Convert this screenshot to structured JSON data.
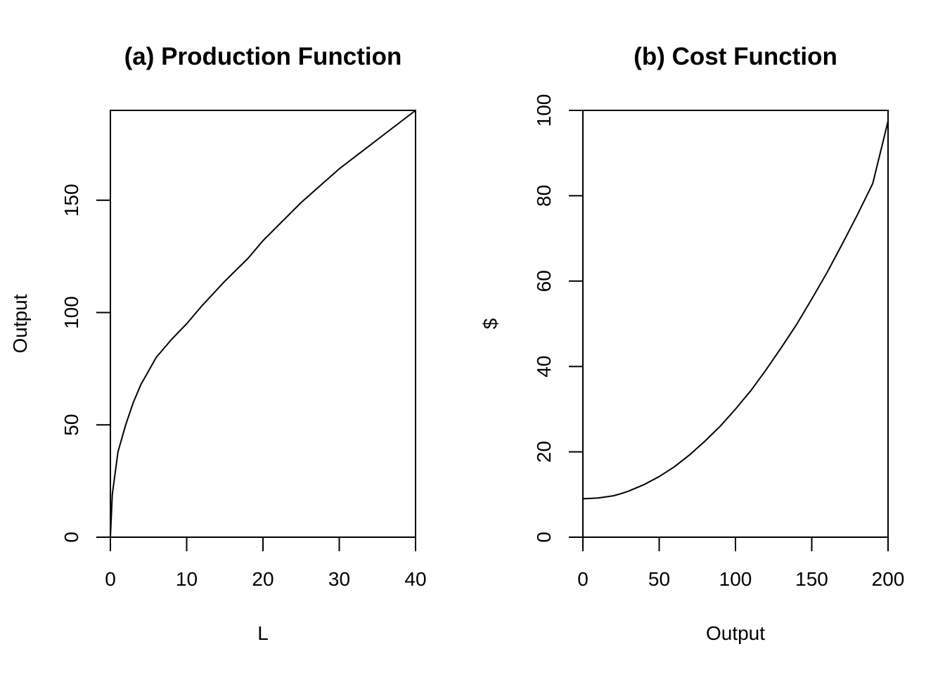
{
  "chart_data": [
    {
      "type": "line",
      "title": "(a) Production Function",
      "xlabel": "L",
      "ylabel": "Output",
      "xlim": [
        0,
        40
      ],
      "ylim": [
        0,
        190
      ],
      "x_ticks": [
        0,
        10,
        20,
        30,
        40
      ],
      "y_ticks": [
        0,
        50,
        100,
        150
      ],
      "grid": false,
      "series": [
        {
          "x": [
            0,
            0.25,
            1,
            2,
            3,
            4,
            5,
            6,
            8,
            10,
            12,
            15,
            18,
            20,
            25,
            30,
            35,
            40
          ],
          "y": [
            0,
            19,
            38,
            50,
            60,
            68,
            74,
            80,
            88,
            95,
            103,
            114,
            124,
            132,
            149,
            164,
            177,
            190
          ]
        }
      ]
    },
    {
      "type": "line",
      "title": "(b) Cost Function",
      "xlabel": "Output",
      "ylabel": "$",
      "xlim": [
        0,
        200
      ],
      "ylim": [
        0,
        100
      ],
      "x_ticks": [
        0,
        50,
        100,
        150,
        200
      ],
      "y_ticks": [
        0,
        20,
        40,
        60,
        80,
        100
      ],
      "grid": false,
      "series": [
        {
          "x": [
            0,
            10,
            20,
            25,
            30,
            40,
            50,
            60,
            70,
            80,
            90,
            100,
            110,
            120,
            130,
            140,
            150,
            160,
            170,
            180,
            190,
            200
          ],
          "y": [
            9,
            9.2,
            9.7,
            10.2,
            10.8,
            12.3,
            14.2,
            16.5,
            19.3,
            22.5,
            26.0,
            30.0,
            34.3,
            39.2,
            44.4,
            49.8,
            55.8,
            62.0,
            68.7,
            75.6,
            82.9,
            97.5
          ]
        }
      ]
    }
  ]
}
